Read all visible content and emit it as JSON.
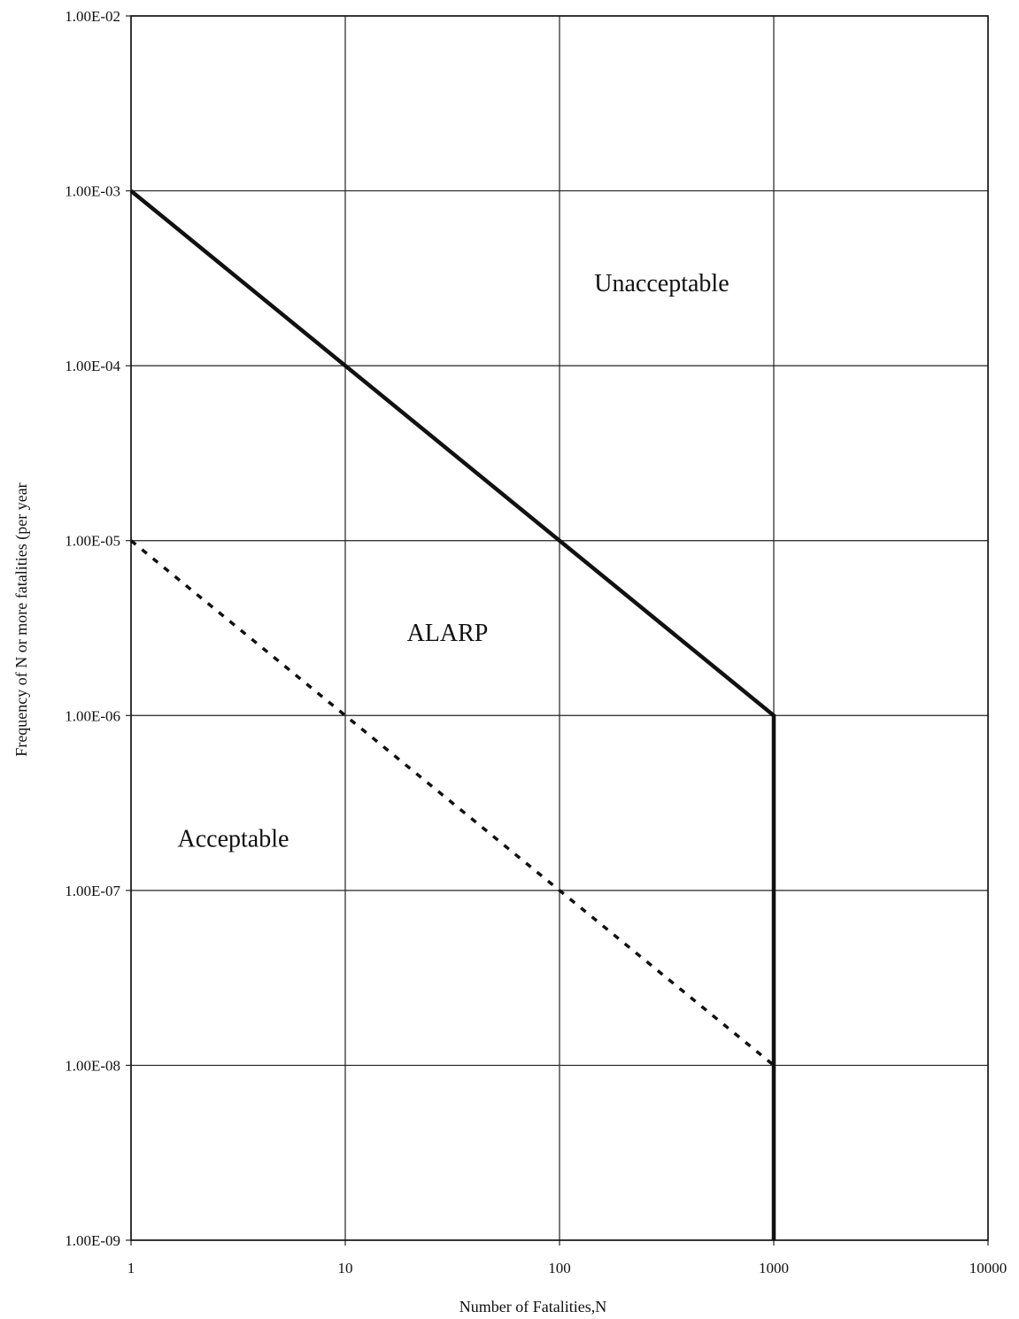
{
  "chart_data": {
    "type": "line",
    "x_scale": "log",
    "y_scale": "log",
    "xlabel": "Number of Fatalities,N",
    "ylabel": "Frequency of N or more fatalities (per year",
    "xlim": [
      1,
      10000
    ],
    "ylim": [
      1e-09,
      0.01
    ],
    "grid": true,
    "x_ticks": [
      {
        "value": 1,
        "label": "1"
      },
      {
        "value": 10,
        "label": "10"
      },
      {
        "value": 100,
        "label": "100"
      },
      {
        "value": 1000,
        "label": "1000"
      },
      {
        "value": 10000,
        "label": "10000"
      }
    ],
    "y_ticks": [
      {
        "value": 0.01,
        "label": "1.00E-02"
      },
      {
        "value": 0.001,
        "label": "1.00E-03"
      },
      {
        "value": 0.0001,
        "label": "1.00E-04"
      },
      {
        "value": 1e-05,
        "label": "1.00E-05"
      },
      {
        "value": 1e-06,
        "label": "1.00E-06"
      },
      {
        "value": 1e-07,
        "label": "1.00E-07"
      },
      {
        "value": 1e-08,
        "label": "1.00E-08"
      },
      {
        "value": 1e-09,
        "label": "1.00E-09"
      }
    ],
    "series": [
      {
        "style": "solid",
        "color": "#111111",
        "points": [
          [
            1,
            0.001
          ],
          [
            10,
            0.0001
          ],
          [
            100,
            1e-05
          ],
          [
            1000,
            1e-06
          ],
          [
            1000,
            1e-09
          ]
        ]
      },
      {
        "style": "dashed",
        "color": "#111111",
        "points": [
          [
            1,
            1e-05
          ],
          [
            10,
            1e-06
          ],
          [
            100,
            1e-07
          ],
          [
            1000,
            1e-08
          ]
        ]
      }
    ],
    "annotations": [
      {
        "text": "Unacceptable",
        "x": 300,
        "y": 0.0003
      },
      {
        "text": "ALARP",
        "x": 30,
        "y": 3e-06
      },
      {
        "text": "Acceptable",
        "x": 3,
        "y": 2e-07
      }
    ]
  }
}
